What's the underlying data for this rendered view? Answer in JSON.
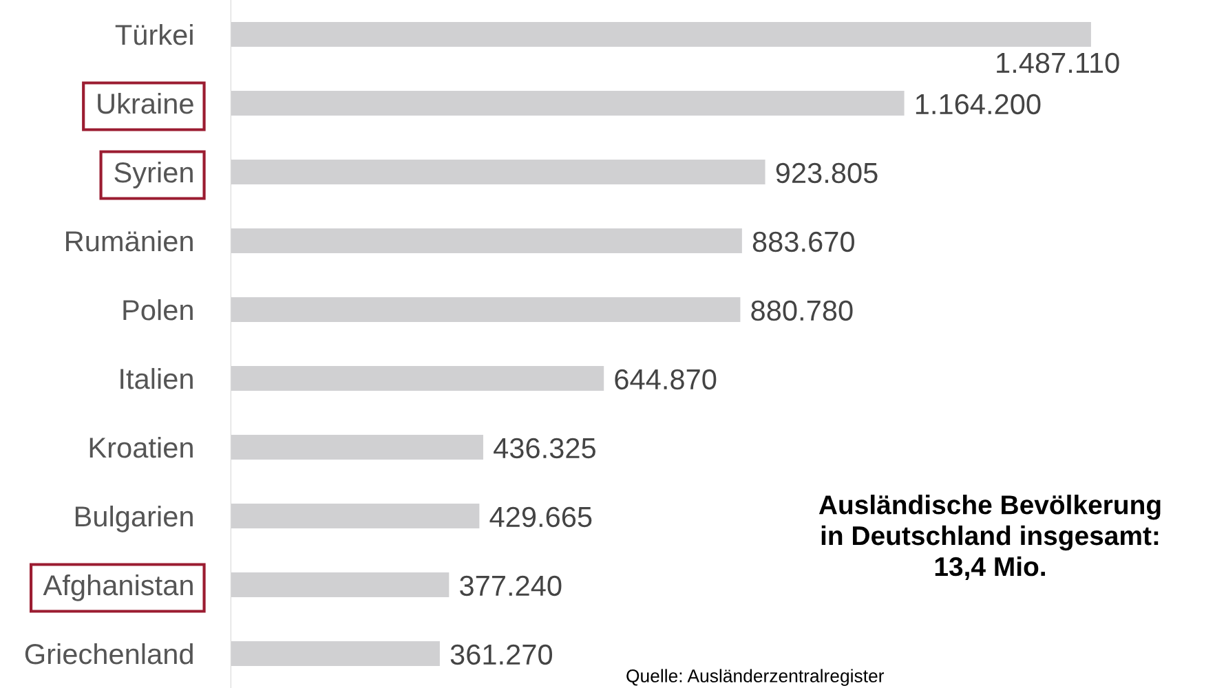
{
  "chart_data": {
    "type": "bar",
    "orientation": "horizontal",
    "categories": [
      "Türkei",
      "Ukraine",
      "Syrien",
      "Rumänien",
      "Polen",
      "Italien",
      "Kroatien",
      "Bulgarien",
      "Afghanistan",
      "Griechenland"
    ],
    "values": [
      1487110,
      1164200,
      923805,
      883670,
      880780,
      644870,
      436325,
      429665,
      377240,
      361270
    ],
    "value_labels": [
      "1.487.110",
      "1.164.200",
      "923.805",
      "883.670",
      "880.780",
      "644.870",
      "436.325",
      "429.665",
      "377.240",
      "361.270"
    ],
    "color": "#d0d0d2",
    "annotations": [
      "Ausländische Bevölkerung\nin Deutschland insgesamt:\n13,4 Mio.",
      "Quelle: Ausländerzentralregister"
    ],
    "grid": false,
    "legend": false
  }
}
